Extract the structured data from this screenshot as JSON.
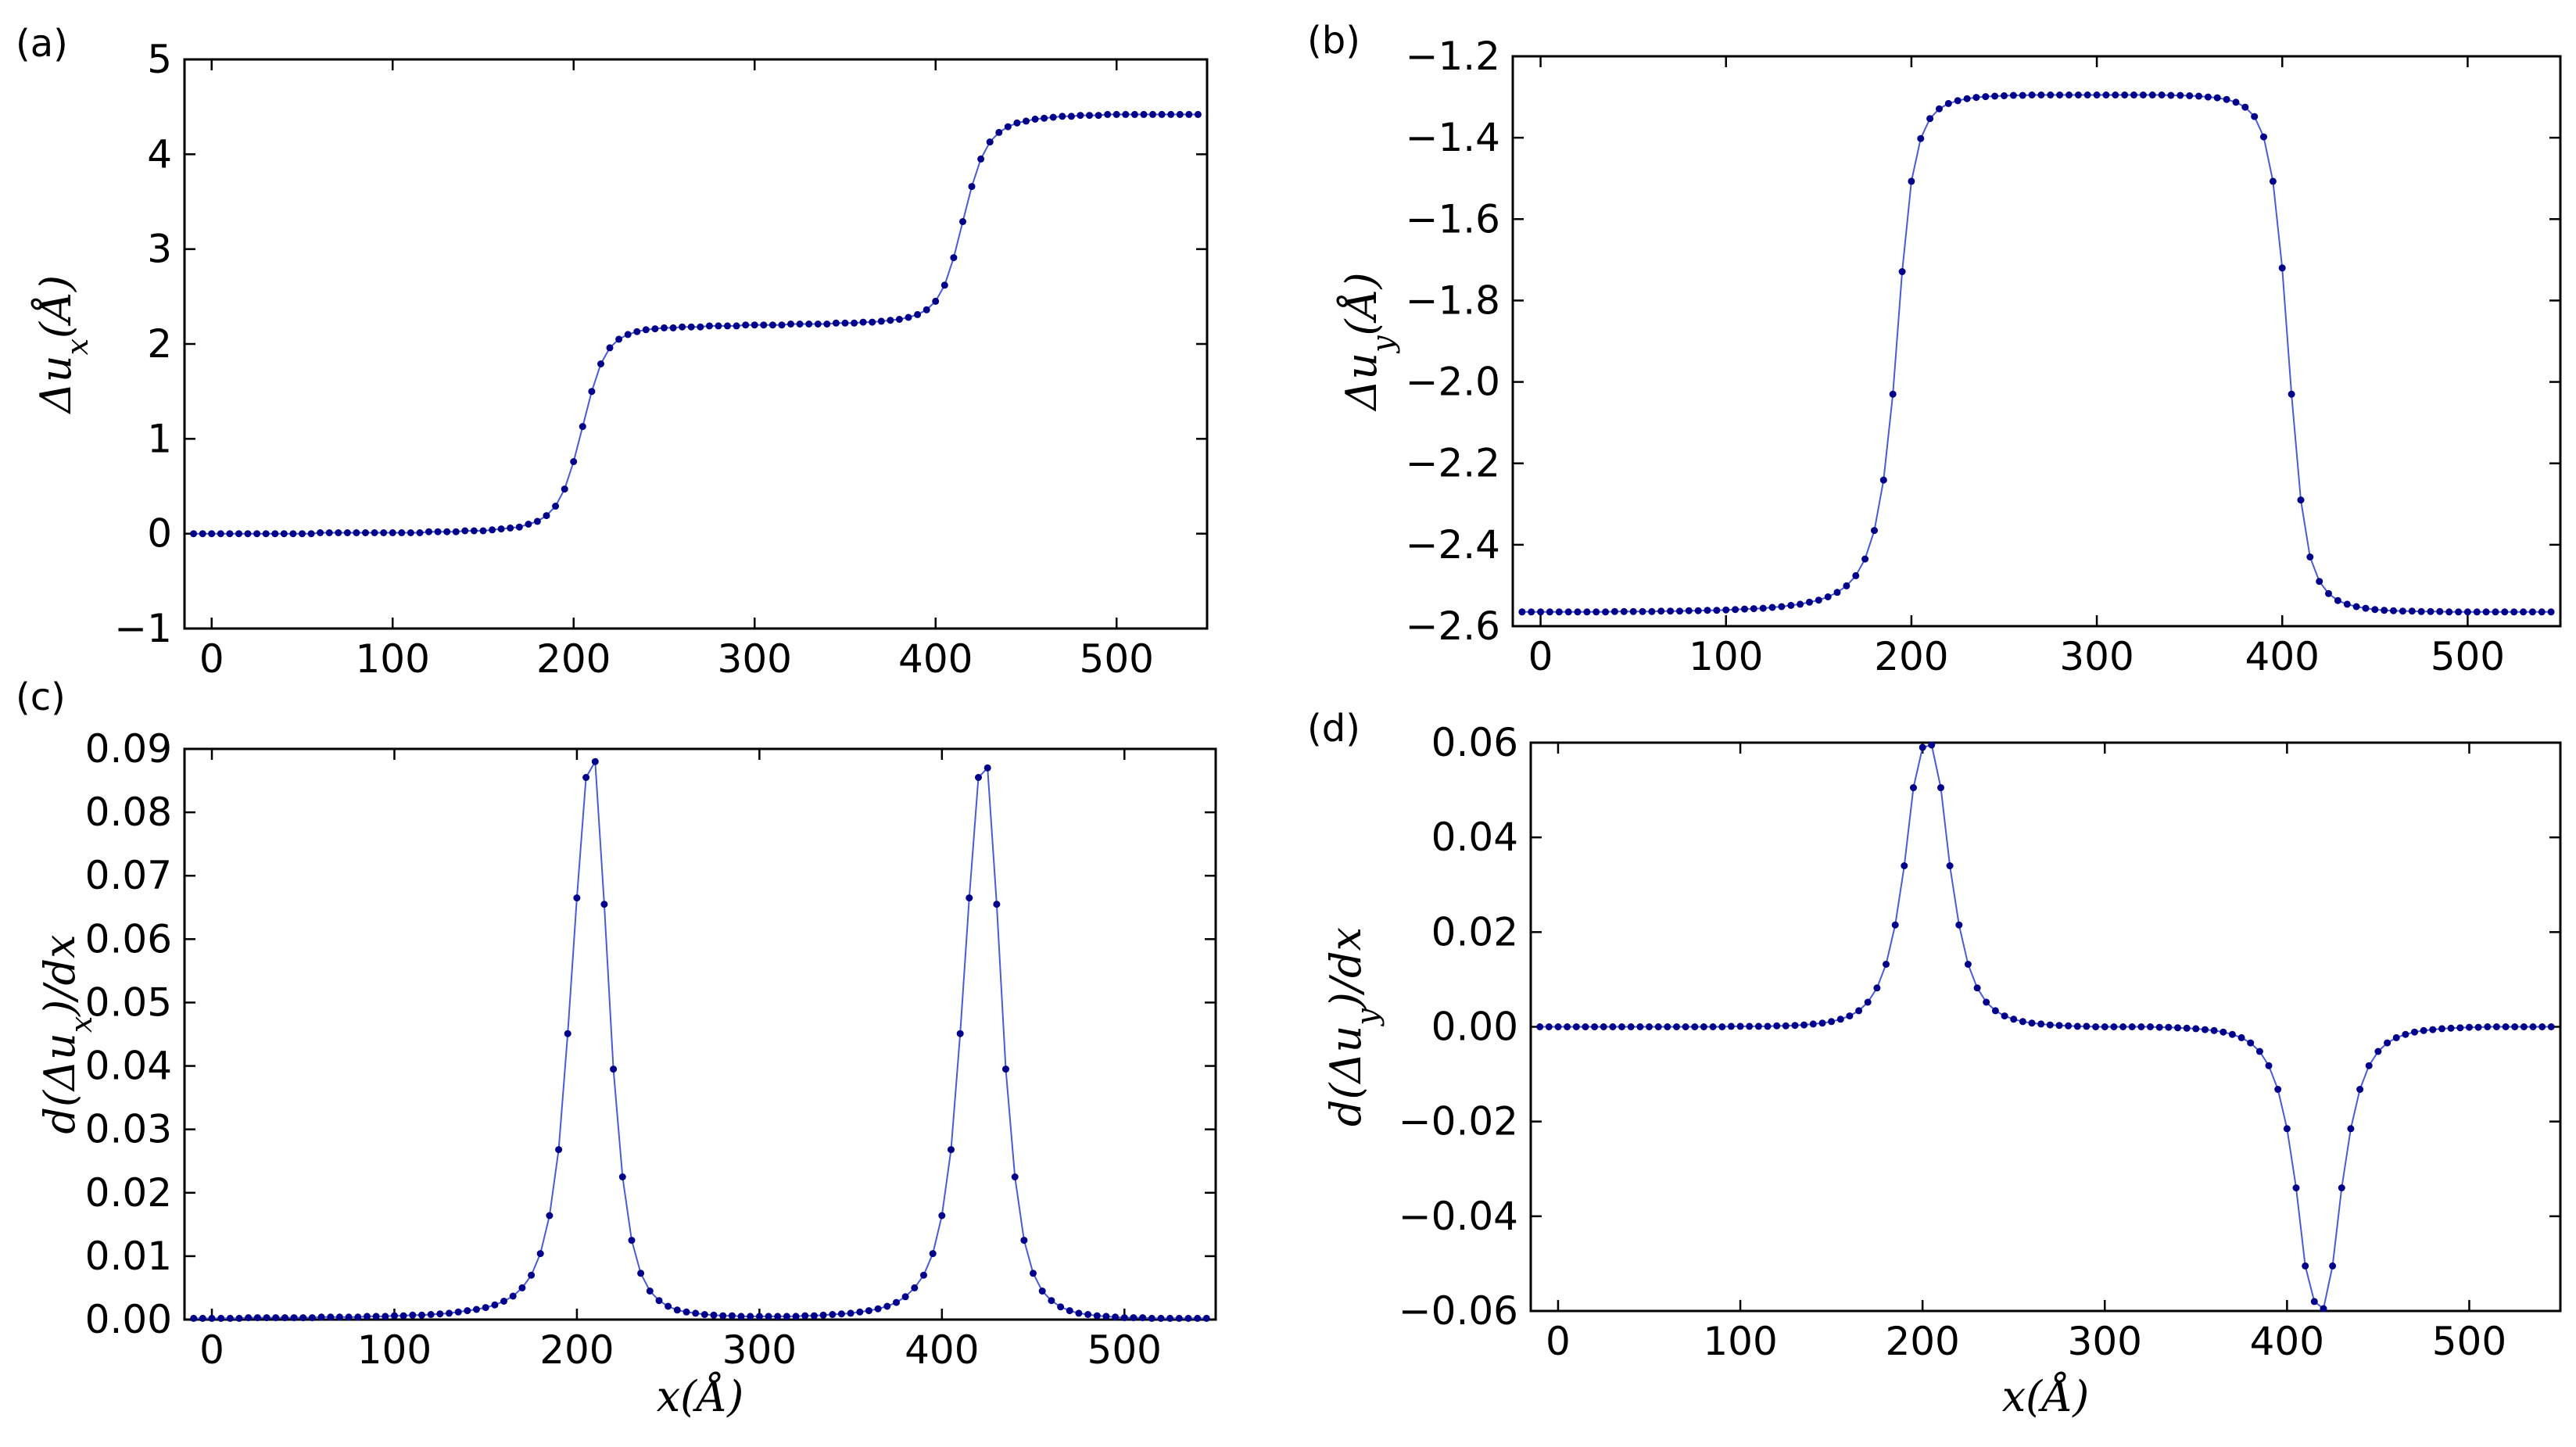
{
  "figure": {
    "marker_color": "#00008b",
    "line_color": "#4a5bd6"
  },
  "chart_data": [
    {
      "id": "a",
      "panel_label": "(a)",
      "type": "line",
      "ylabel": "Δu_x(Å)",
      "xlabel": "",
      "xlim": [
        -15,
        550
      ],
      "ylim": [
        -1,
        5
      ],
      "xticks": [
        "0",
        "100",
        "200",
        "300",
        "400",
        "500"
      ],
      "yticks": [
        "−1",
        "0",
        "1",
        "2",
        "3",
        "4",
        "5"
      ],
      "xtick_values": [
        0,
        100,
        200,
        300,
        400,
        500
      ],
      "ytick_values": [
        -1,
        0,
        1,
        2,
        3,
        4,
        5
      ],
      "series": [
        {
          "name": "Δu_x",
          "x": [
            -10,
            -5,
            0,
            5,
            10,
            15,
            20,
            25,
            30,
            35,
            40,
            45,
            50,
            55,
            60,
            65,
            70,
            75,
            80,
            85,
            90,
            95,
            100,
            105,
            110,
            115,
            120,
            125,
            130,
            135,
            140,
            145,
            150,
            155,
            160,
            165,
            170,
            175,
            180,
            185,
            190,
            195,
            200,
            205,
            210,
            215,
            220,
            225,
            230,
            235,
            240,
            245,
            250,
            255,
            260,
            265,
            270,
            275,
            280,
            285,
            290,
            295,
            300,
            305,
            310,
            315,
            320,
            325,
            330,
            335,
            340,
            345,
            350,
            355,
            360,
            365,
            370,
            375,
            380,
            385,
            390,
            395,
            400,
            405,
            410,
            415,
            420,
            425,
            430,
            435,
            440,
            445,
            450,
            455,
            460,
            465,
            470,
            475,
            480,
            485,
            490,
            495,
            500,
            505,
            510,
            515,
            520,
            525,
            530,
            535,
            540,
            545
          ],
          "values": [
            0.0,
            0.0,
            0.0,
            0.0,
            0.0,
            0.0,
            0.0,
            0.0,
            0.0,
            0.0,
            0.0,
            0.0,
            0.0,
            0.0,
            0.01,
            0.01,
            0.01,
            0.01,
            0.01,
            0.01,
            0.01,
            0.01,
            0.01,
            0.01,
            0.01,
            0.01,
            0.02,
            0.02,
            0.02,
            0.02,
            0.03,
            0.03,
            0.03,
            0.04,
            0.05,
            0.06,
            0.07,
            0.1,
            0.13,
            0.19,
            0.29,
            0.47,
            0.76,
            1.13,
            1.5,
            1.79,
            1.96,
            2.05,
            2.1,
            2.13,
            2.15,
            2.16,
            2.17,
            2.17,
            2.18,
            2.18,
            2.18,
            2.19,
            2.19,
            2.19,
            2.19,
            2.2,
            2.2,
            2.2,
            2.2,
            2.2,
            2.21,
            2.21,
            2.21,
            2.21,
            2.21,
            2.22,
            2.22,
            2.22,
            2.23,
            2.23,
            2.24,
            2.25,
            2.26,
            2.28,
            2.31,
            2.36,
            2.45,
            2.62,
            2.91,
            3.29,
            3.66,
            3.95,
            4.13,
            4.23,
            4.29,
            4.33,
            4.35,
            4.37,
            4.38,
            4.39,
            4.4,
            4.4,
            4.41,
            4.41,
            4.41,
            4.42,
            4.42,
            4.42,
            4.42,
            4.42,
            4.42,
            4.42,
            4.42,
            4.42,
            4.42,
            4.42
          ]
        }
      ]
    },
    {
      "id": "b",
      "panel_label": "(b)",
      "type": "line",
      "ylabel": "Δu_y(Å)",
      "xlabel": "",
      "xlim": [
        -15,
        550
      ],
      "ylim": [
        -2.6,
        -1.2
      ],
      "xticks": [
        "0",
        "100",
        "200",
        "300",
        "400",
        "500"
      ],
      "yticks": [
        "−2.6",
        "−2.4",
        "−2.2",
        "−2.0",
        "−1.8",
        "−1.6",
        "−1.4",
        "−1.2"
      ],
      "xtick_values": [
        0,
        100,
        200,
        300,
        400,
        500
      ],
      "ytick_values": [
        -2.6,
        -2.4,
        -2.2,
        -2.0,
        -1.8,
        -1.6,
        -1.4,
        -1.2
      ],
      "series": [
        {
          "name": "Δu_y",
          "x": [
            -10,
            -5,
            0,
            5,
            10,
            15,
            20,
            25,
            30,
            35,
            40,
            45,
            50,
            55,
            60,
            65,
            70,
            75,
            80,
            85,
            90,
            95,
            100,
            105,
            110,
            115,
            120,
            125,
            130,
            135,
            140,
            145,
            150,
            155,
            160,
            165,
            170,
            175,
            180,
            185,
            190,
            195,
            200,
            205,
            210,
            215,
            220,
            225,
            230,
            235,
            240,
            245,
            250,
            255,
            260,
            265,
            270,
            275,
            280,
            285,
            290,
            295,
            300,
            305,
            310,
            315,
            320,
            325,
            330,
            335,
            340,
            345,
            350,
            355,
            360,
            365,
            370,
            375,
            380,
            385,
            390,
            395,
            400,
            405,
            410,
            415,
            420,
            425,
            430,
            435,
            440,
            445,
            450,
            455,
            460,
            465,
            470,
            475,
            480,
            485,
            490,
            495,
            500,
            505,
            510,
            515,
            520,
            525,
            530,
            535,
            540,
            545
          ],
          "values": [
            -2.565,
            -2.565,
            -2.565,
            -2.565,
            -2.565,
            -2.565,
            -2.565,
            -2.565,
            -2.565,
            -2.565,
            -2.564,
            -2.564,
            -2.564,
            -2.564,
            -2.564,
            -2.563,
            -2.563,
            -2.563,
            -2.562,
            -2.562,
            -2.561,
            -2.561,
            -2.56,
            -2.559,
            -2.558,
            -2.557,
            -2.556,
            -2.554,
            -2.552,
            -2.549,
            -2.546,
            -2.541,
            -2.536,
            -2.528,
            -2.517,
            -2.501,
            -2.476,
            -2.435,
            -2.365,
            -2.241,
            -2.03,
            -1.729,
            -1.507,
            -1.402,
            -1.353,
            -1.329,
            -1.316,
            -1.309,
            -1.304,
            -1.301,
            -1.299,
            -1.298,
            -1.297,
            -1.296,
            -1.296,
            -1.295,
            -1.295,
            -1.295,
            -1.295,
            -1.295,
            -1.295,
            -1.295,
            -1.295,
            -1.295,
            -1.295,
            -1.295,
            -1.295,
            -1.295,
            -1.295,
            -1.295,
            -1.296,
            -1.296,
            -1.297,
            -1.298,
            -1.3,
            -1.302,
            -1.306,
            -1.313,
            -1.325,
            -1.348,
            -1.398,
            -1.507,
            -1.72,
            -2.03,
            -2.29,
            -2.43,
            -2.49,
            -2.52,
            -2.537,
            -2.546,
            -2.552,
            -2.556,
            -2.559,
            -2.561,
            -2.562,
            -2.563,
            -2.563,
            -2.564,
            -2.564,
            -2.564,
            -2.565,
            -2.565,
            -2.565,
            -2.565,
            -2.565,
            -2.565,
            -2.565,
            -2.565,
            -2.565,
            -2.565,
            -2.565,
            -2.565
          ]
        }
      ]
    },
    {
      "id": "c",
      "panel_label": "(c)",
      "type": "line",
      "ylabel": "d(Δu_x)/dx",
      "xlabel": "x(Å)",
      "xlim": [
        -15,
        550
      ],
      "ylim": [
        0,
        0.09
      ],
      "xticks": [
        "0",
        "100",
        "200",
        "300",
        "400",
        "500"
      ],
      "yticks": [
        "0.00",
        "0.01",
        "0.02",
        "0.03",
        "0.04",
        "0.05",
        "0.06",
        "0.07",
        "0.08",
        "0.09"
      ],
      "xtick_values": [
        0,
        100,
        200,
        300,
        400,
        500
      ],
      "ytick_values": [
        0,
        0.01,
        0.02,
        0.03,
        0.04,
        0.05,
        0.06,
        0.07,
        0.08,
        0.09
      ],
      "series": [
        {
          "name": "d(Δu_x)/dx",
          "x": [
            -10,
            -5,
            0,
            5,
            10,
            15,
            20,
            25,
            30,
            35,
            40,
            45,
            50,
            55,
            60,
            65,
            70,
            75,
            80,
            85,
            90,
            95,
            100,
            105,
            110,
            115,
            120,
            125,
            130,
            135,
            140,
            145,
            150,
            155,
            160,
            165,
            170,
            175,
            180,
            185,
            190,
            195,
            200,
            205,
            210,
            215,
            220,
            225,
            230,
            235,
            240,
            245,
            250,
            255,
            260,
            265,
            270,
            275,
            280,
            285,
            290,
            295,
            300,
            305,
            310,
            315,
            320,
            325,
            330,
            335,
            340,
            345,
            350,
            355,
            360,
            365,
            370,
            375,
            380,
            385,
            390,
            395,
            400,
            405,
            410,
            415,
            420,
            425,
            430,
            435,
            440,
            445,
            450,
            455,
            460,
            465,
            470,
            475,
            480,
            485,
            490,
            495,
            500,
            505,
            510,
            515,
            520,
            525,
            530,
            535,
            540,
            545
          ],
          "values": [
            0.0002,
            0.0002,
            0.0002,
            0.0002,
            0.0002,
            0.0002,
            0.0003,
            0.0003,
            0.0003,
            0.0003,
            0.0003,
            0.0003,
            0.0003,
            0.0003,
            0.0004,
            0.0004,
            0.0004,
            0.0004,
            0.0004,
            0.0005,
            0.0005,
            0.0005,
            0.0006,
            0.0006,
            0.0007,
            0.0007,
            0.0008,
            0.0009,
            0.001,
            0.0012,
            0.0014,
            0.0016,
            0.0019,
            0.0023,
            0.0029,
            0.0037,
            0.005,
            0.007,
            0.0104,
            0.0164,
            0.0268,
            0.0451,
            0.0665,
            0.0855,
            0.088,
            0.0655,
            0.0395,
            0.0225,
            0.0125,
            0.0073,
            0.0045,
            0.003,
            0.0021,
            0.0015,
            0.0012,
            0.001,
            0.0008,
            0.0007,
            0.0006,
            0.0006,
            0.0005,
            0.0005,
            0.0005,
            0.0005,
            0.0005,
            0.0005,
            0.0005,
            0.0006,
            0.0006,
            0.0007,
            0.0008,
            0.0009,
            0.001,
            0.0012,
            0.0014,
            0.0017,
            0.0021,
            0.0027,
            0.0036,
            0.005,
            0.007,
            0.0104,
            0.0164,
            0.0268,
            0.0451,
            0.0665,
            0.0855,
            0.087,
            0.0655,
            0.0395,
            0.0225,
            0.0125,
            0.0073,
            0.0045,
            0.003,
            0.002,
            0.0014,
            0.001,
            0.0008,
            0.0006,
            0.0005,
            0.0004,
            0.0003,
            0.0003,
            0.0003,
            0.0002,
            0.0002,
            0.0002,
            0.0002,
            0.0002,
            0.0002,
            0.0002
          ]
        }
      ]
    },
    {
      "id": "d",
      "panel_label": "(d)",
      "type": "line",
      "ylabel": "d(Δu_y)/dx",
      "xlabel": "x(Å)",
      "xlim": [
        -15,
        550
      ],
      "ylim": [
        -0.06,
        0.06
      ],
      "xticks": [
        "0",
        "100",
        "200",
        "300",
        "400",
        "500"
      ],
      "yticks": [
        "−0.06",
        "−0.04",
        "−0.02",
        "0.00",
        "0.02",
        "0.04",
        "0.06"
      ],
      "xtick_values": [
        0,
        100,
        200,
        300,
        400,
        500
      ],
      "ytick_values": [
        -0.06,
        -0.04,
        -0.02,
        0,
        0.02,
        0.04,
        0.06
      ],
      "series": [
        {
          "name": "d(Δu_y)/dx",
          "x": [
            -10,
            -5,
            0,
            5,
            10,
            15,
            20,
            25,
            30,
            35,
            40,
            45,
            50,
            55,
            60,
            65,
            70,
            75,
            80,
            85,
            90,
            95,
            100,
            105,
            110,
            115,
            120,
            125,
            130,
            135,
            140,
            145,
            150,
            155,
            160,
            165,
            170,
            175,
            180,
            185,
            190,
            195,
            200,
            205,
            210,
            215,
            220,
            225,
            230,
            235,
            240,
            245,
            250,
            255,
            260,
            265,
            270,
            275,
            280,
            285,
            290,
            295,
            300,
            305,
            310,
            315,
            320,
            325,
            330,
            335,
            340,
            345,
            350,
            355,
            360,
            365,
            370,
            375,
            380,
            385,
            390,
            395,
            400,
            405,
            410,
            415,
            420,
            425,
            430,
            435,
            440,
            445,
            450,
            455,
            460,
            465,
            470,
            475,
            480,
            485,
            490,
            495,
            500,
            505,
            510,
            515,
            520,
            525,
            530,
            535,
            540,
            545
          ],
          "values": [
            0.0,
            0.0,
            0.0,
            0.0,
            0.0,
            0.0,
            0.0,
            0.0,
            0.0,
            0.0,
            0.0,
            0.0,
            0.0,
            0.0,
            0.0,
            0.0,
            0.0,
            0.0,
            0.0,
            0.0,
            0.0,
            0.0001,
            0.0001,
            0.0001,
            0.0001,
            0.0001,
            0.0002,
            0.0002,
            0.0003,
            0.0004,
            0.0006,
            0.0008,
            0.0011,
            0.0016,
            0.0023,
            0.0034,
            0.0052,
            0.0082,
            0.0132,
            0.0215,
            0.034,
            0.0505,
            0.059,
            0.0595,
            0.0505,
            0.034,
            0.0215,
            0.0132,
            0.0082,
            0.0052,
            0.0034,
            0.0023,
            0.0016,
            0.0011,
            0.0008,
            0.0006,
            0.0004,
            0.0003,
            0.0002,
            0.0001,
            0.0001,
            0.0,
            0.0,
            0.0,
            0.0,
            0.0,
            0.0,
            0.0,
            -0.0001,
            -0.0001,
            -0.0002,
            -0.0003,
            -0.0004,
            -0.0006,
            -0.0008,
            -0.0011,
            -0.0016,
            -0.0023,
            -0.0034,
            -0.0052,
            -0.0082,
            -0.0132,
            -0.0215,
            -0.034,
            -0.0505,
            -0.058,
            -0.0595,
            -0.0505,
            -0.034,
            -0.0215,
            -0.0132,
            -0.0082,
            -0.0052,
            -0.0034,
            -0.0023,
            -0.0016,
            -0.0011,
            -0.0008,
            -0.0006,
            -0.0004,
            -0.0003,
            -0.0002,
            -0.0001,
            -0.0001,
            0.0,
            0.0,
            0.0,
            0.0,
            0.0,
            0.0,
            0.0,
            0.0
          ]
        }
      ]
    }
  ]
}
